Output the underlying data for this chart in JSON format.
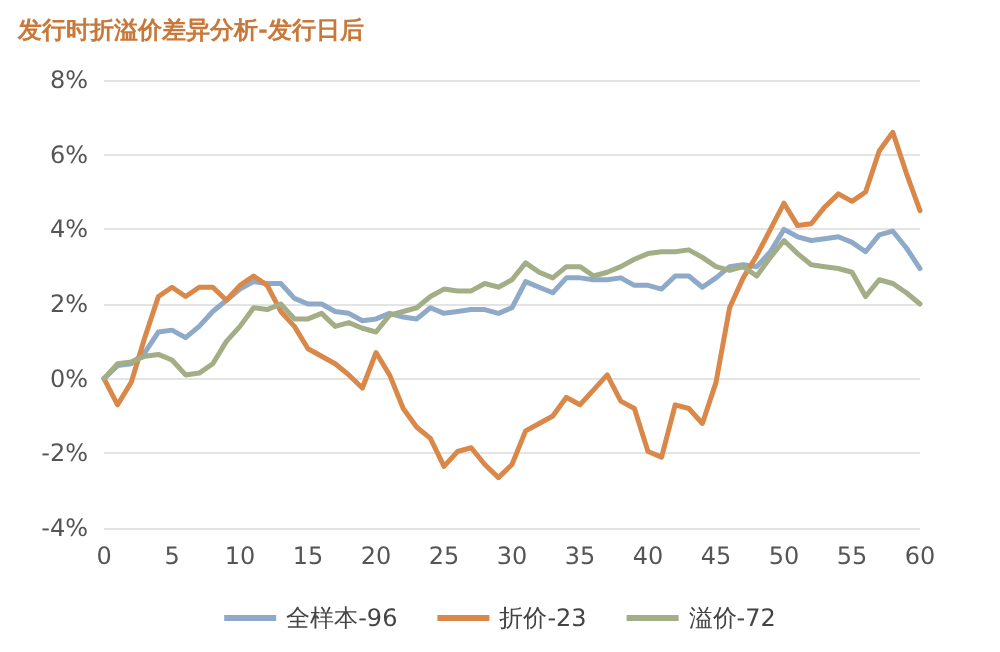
{
  "chart_data": {
    "type": "line",
    "title": "发行时折溢价差异分析-发行日后",
    "x": [
      0,
      1,
      2,
      3,
      4,
      5,
      6,
      7,
      8,
      9,
      10,
      11,
      12,
      13,
      14,
      15,
      16,
      17,
      18,
      19,
      20,
      21,
      22,
      23,
      24,
      25,
      26,
      27,
      28,
      29,
      30,
      31,
      32,
      33,
      34,
      35,
      36,
      37,
      38,
      39,
      40,
      41,
      42,
      43,
      44,
      45,
      46,
      47,
      48,
      49,
      50,
      51,
      52,
      53,
      54,
      55,
      56,
      57,
      58,
      59,
      60
    ],
    "series": [
      {
        "name": "全样本-96",
        "color": "#8fa9c8",
        "values": [
          0,
          0.35,
          0.4,
          0.7,
          1.25,
          1.3,
          1.1,
          1.4,
          1.8,
          2.1,
          2.4,
          2.6,
          2.55,
          2.55,
          2.15,
          2.0,
          2.0,
          1.8,
          1.75,
          1.55,
          1.6,
          1.75,
          1.65,
          1.6,
          1.9,
          1.75,
          1.8,
          1.85,
          1.85,
          1.75,
          1.9,
          2.6,
          2.45,
          2.3,
          2.7,
          2.7,
          2.65,
          2.65,
          2.7,
          2.5,
          2.5,
          2.4,
          2.75,
          2.75,
          2.45,
          2.7,
          3.0,
          3.05,
          3.0,
          3.4,
          4.0,
          3.8,
          3.7,
          3.75,
          3.8,
          3.65,
          3.4,
          3.85,
          3.95,
          3.5,
          2.95
        ]
      },
      {
        "name": "折价-23",
        "color": "#d9884a",
        "values": [
          0,
          -0.7,
          -0.1,
          1.1,
          2.2,
          2.45,
          2.2,
          2.45,
          2.45,
          2.1,
          2.5,
          2.75,
          2.5,
          1.8,
          1.4,
          0.8,
          0.6,
          0.4,
          0.1,
          -0.25,
          0.7,
          0.1,
          -0.8,
          -1.3,
          -1.6,
          -2.35,
          -1.95,
          -1.85,
          -2.3,
          -2.65,
          -2.3,
          -1.4,
          -1.2,
          -1.0,
          -0.5,
          -0.7,
          -0.3,
          0.1,
          -0.6,
          -0.8,
          -1.95,
          -2.1,
          -0.7,
          -0.8,
          -1.2,
          -0.1,
          1.9,
          2.7,
          3.3,
          4.0,
          4.7,
          4.1,
          4.15,
          4.6,
          4.95,
          4.75,
          5.0,
          6.1,
          6.6,
          5.5,
          4.5
        ]
      },
      {
        "name": "溢价-72",
        "color": "#a3ad86",
        "values": [
          0,
          0.4,
          0.45,
          0.6,
          0.65,
          0.5,
          0.1,
          0.15,
          0.4,
          1.0,
          1.4,
          1.9,
          1.85,
          2.0,
          1.6,
          1.6,
          1.75,
          1.4,
          1.5,
          1.35,
          1.25,
          1.7,
          1.8,
          1.9,
          2.2,
          2.4,
          2.35,
          2.35,
          2.55,
          2.45,
          2.65,
          3.1,
          2.85,
          2.7,
          3.0,
          3.0,
          2.75,
          2.85,
          3.0,
          3.2,
          3.35,
          3.4,
          3.4,
          3.45,
          3.25,
          3.0,
          2.9,
          3.0,
          2.75,
          3.25,
          3.7,
          3.35,
          3.05,
          3.0,
          2.95,
          2.85,
          2.2,
          2.65,
          2.55,
          2.3,
          2.0
        ]
      }
    ],
    "xlim": [
      0,
      60
    ],
    "xticks": [
      0,
      5,
      10,
      15,
      20,
      25,
      30,
      35,
      40,
      45,
      50,
      55,
      60
    ],
    "ylim": [
      -4,
      8
    ],
    "yticks": [
      {
        "value": -4,
        "label": "-4%"
      },
      {
        "value": -2,
        "label": "-2%"
      },
      {
        "value": 0,
        "label": "0%"
      },
      {
        "value": 2,
        "label": "2%"
      },
      {
        "value": 4,
        "label": "4%"
      },
      {
        "value": 6,
        "label": "6%"
      },
      {
        "value": 8,
        "label": "8%"
      }
    ],
    "grid": "y",
    "legend": "bottom",
    "marker": "none",
    "line_style": "solid"
  }
}
